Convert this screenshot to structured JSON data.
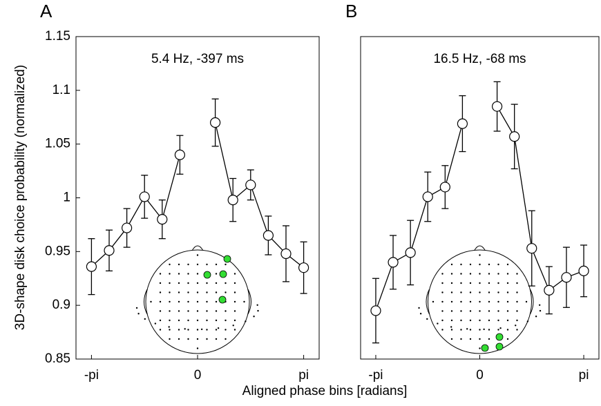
{
  "ylabel": "3D-shape disk choice probability (normalized)",
  "xlabel": "Aligned phase bins [radians]",
  "chart_data": [
    {
      "type": "line",
      "panel_label": "A",
      "annotation": "5.4 Hz, -397 ms",
      "x": [
        -3.1416,
        -2.618,
        -2.0944,
        -1.5708,
        -1.0472,
        -0.5236,
        0,
        0.5236,
        1.0472,
        1.5708,
        2.0944,
        2.618,
        3.1416
      ],
      "values": [
        0.936,
        0.951,
        0.972,
        1.001,
        0.98,
        1.04,
        null,
        1.07,
        0.998,
        1.012,
        0.965,
        0.948,
        0.935
      ],
      "errors": [
        0.026,
        0.019,
        0.018,
        0.02,
        0.018,
        0.018,
        null,
        0.022,
        0.02,
        0.014,
        0.018,
        0.026,
        0.024
      ],
      "color": "#000000",
      "marker_fill": "#ffffff",
      "xlim": [
        -3.6,
        3.6
      ],
      "ylim": [
        0.85,
        1.15
      ],
      "xticks": [
        {
          "value": -3.1416,
          "label": "-pi"
        },
        0,
        {
          "value": 3.1416,
          "label": "pi"
        }
      ],
      "yticks": [
        0.85,
        0.9,
        0.95,
        1,
        1.05,
        1.1,
        1.15
      ]
    },
    {
      "type": "line",
      "panel_label": "B",
      "annotation": "16.5 Hz, -68 ms",
      "x": [
        -3.1416,
        -2.618,
        -2.0944,
        -1.5708,
        -1.0472,
        -0.5236,
        0,
        0.5236,
        1.0472,
        1.5708,
        2.0944,
        2.618,
        3.1416
      ],
      "values": [
        0.895,
        0.94,
        0.949,
        1.001,
        1.01,
        1.069,
        null,
        1.085,
        1.057,
        0.953,
        0.914,
        0.926,
        0.932
      ],
      "errors": [
        0.03,
        0.025,
        0.03,
        0.023,
        0.02,
        0.026,
        null,
        0.023,
        0.03,
        0.035,
        0.022,
        0.028,
        0.024
      ],
      "color": "#000000",
      "marker_fill": "#ffffff",
      "xlim": [
        -3.6,
        3.6
      ],
      "ylim": [
        0.85,
        1.15
      ],
      "xticks": [
        {
          "value": -3.1416,
          "label": "-pi"
        },
        0,
        {
          "value": 3.1416,
          "label": "pi"
        }
      ]
    }
  ]
}
